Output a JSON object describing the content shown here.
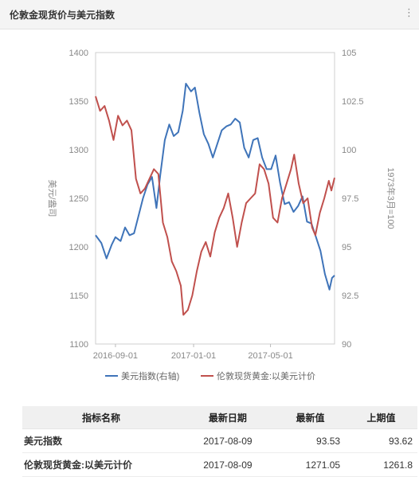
{
  "panel": {
    "title": "伦敦金现货价与美元指数",
    "corner_icon": "expand-icon"
  },
  "chart_data": {
    "type": "line",
    "x_ticks": [
      "2016-09-01",
      "2017-01-01",
      "2017-05-01"
    ],
    "x_range": [
      "2016-08-01",
      "2017-08-09"
    ],
    "y_left": {
      "label": "美元/盎司",
      "ticks": [
        1400,
        1350,
        1300,
        1250,
        1200,
        1150,
        1100
      ],
      "range": [
        1100,
        1400
      ]
    },
    "y_right": {
      "label": "1973年3月=100",
      "ticks": [
        "105",
        "102.5",
        "100",
        "97.5",
        "95",
        "92.5",
        "90"
      ],
      "range": [
        90,
        105
      ]
    },
    "grid": false,
    "legend_position": "bottom",
    "series": [
      {
        "name": "美元指数(右轴)",
        "axis": "right",
        "color": "#3f74b9",
        "points": [
          [
            "2016-08-01",
            95.6
          ],
          [
            "2016-08-10",
            95.2
          ],
          [
            "2016-08-18",
            94.4
          ],
          [
            "2016-08-26",
            95.1
          ],
          [
            "2016-09-01",
            95.5
          ],
          [
            "2016-09-09",
            95.3
          ],
          [
            "2016-09-16",
            96.0
          ],
          [
            "2016-09-23",
            95.6
          ],
          [
            "2016-09-30",
            95.7
          ],
          [
            "2016-10-07",
            96.6
          ],
          [
            "2016-10-14",
            97.5
          ],
          [
            "2016-10-21",
            98.2
          ],
          [
            "2016-10-28",
            98.6
          ],
          [
            "2016-11-04",
            97.0
          ],
          [
            "2016-11-10",
            98.7
          ],
          [
            "2016-11-17",
            100.5
          ],
          [
            "2016-11-24",
            101.3
          ],
          [
            "2016-12-01",
            100.7
          ],
          [
            "2016-12-08",
            100.9
          ],
          [
            "2016-12-15",
            102.0
          ],
          [
            "2016-12-20",
            103.4
          ],
          [
            "2016-12-28",
            103.0
          ],
          [
            "2017-01-03",
            103.2
          ],
          [
            "2017-01-10",
            101.9
          ],
          [
            "2017-01-17",
            100.8
          ],
          [
            "2017-01-24",
            100.3
          ],
          [
            "2017-01-31",
            99.6
          ],
          [
            "2017-02-07",
            100.3
          ],
          [
            "2017-02-14",
            101.0
          ],
          [
            "2017-02-21",
            101.2
          ],
          [
            "2017-02-28",
            101.3
          ],
          [
            "2017-03-07",
            101.6
          ],
          [
            "2017-03-14",
            101.4
          ],
          [
            "2017-03-21",
            100.1
          ],
          [
            "2017-03-28",
            99.6
          ],
          [
            "2017-04-04",
            100.5
          ],
          [
            "2017-04-11",
            100.6
          ],
          [
            "2017-04-18",
            99.6
          ],
          [
            "2017-04-25",
            99.0
          ],
          [
            "2017-05-02",
            99.0
          ],
          [
            "2017-05-09",
            99.7
          ],
          [
            "2017-05-16",
            98.3
          ],
          [
            "2017-05-23",
            97.2
          ],
          [
            "2017-05-30",
            97.3
          ],
          [
            "2017-06-06",
            96.8
          ],
          [
            "2017-06-13",
            97.1
          ],
          [
            "2017-06-20",
            97.6
          ],
          [
            "2017-06-27",
            96.3
          ],
          [
            "2017-07-04",
            96.2
          ],
          [
            "2017-07-11",
            95.5
          ],
          [
            "2017-07-18",
            94.8
          ],
          [
            "2017-07-25",
            93.6
          ],
          [
            "2017-08-01",
            92.8
          ],
          [
            "2017-08-05",
            93.4
          ],
          [
            "2017-08-09",
            93.53
          ]
        ]
      },
      {
        "name": "伦敦现货黄金:以美元计价",
        "axis": "left",
        "color": "#c0504d",
        "points": [
          [
            "2016-08-01",
            1355
          ],
          [
            "2016-08-08",
            1340
          ],
          [
            "2016-08-15",
            1345
          ],
          [
            "2016-08-22",
            1330
          ],
          [
            "2016-08-29",
            1310
          ],
          [
            "2016-09-05",
            1335
          ],
          [
            "2016-09-12",
            1325
          ],
          [
            "2016-09-19",
            1330
          ],
          [
            "2016-09-26",
            1320
          ],
          [
            "2016-10-03",
            1270
          ],
          [
            "2016-10-10",
            1255
          ],
          [
            "2016-10-17",
            1260
          ],
          [
            "2016-10-24",
            1270
          ],
          [
            "2016-10-31",
            1280
          ],
          [
            "2016-11-07",
            1275
          ],
          [
            "2016-11-14",
            1225
          ],
          [
            "2016-11-21",
            1210
          ],
          [
            "2016-11-28",
            1185
          ],
          [
            "2016-12-05",
            1175
          ],
          [
            "2016-12-12",
            1160
          ],
          [
            "2016-12-16",
            1130
          ],
          [
            "2016-12-23",
            1135
          ],
          [
            "2016-12-30",
            1150
          ],
          [
            "2017-01-06",
            1175
          ],
          [
            "2017-01-13",
            1195
          ],
          [
            "2017-01-20",
            1205
          ],
          [
            "2017-01-27",
            1190
          ],
          [
            "2017-02-03",
            1215
          ],
          [
            "2017-02-10",
            1230
          ],
          [
            "2017-02-17",
            1240
          ],
          [
            "2017-02-24",
            1255
          ],
          [
            "2017-03-03",
            1230
          ],
          [
            "2017-03-10",
            1200
          ],
          [
            "2017-03-17",
            1225
          ],
          [
            "2017-03-24",
            1245
          ],
          [
            "2017-03-31",
            1250
          ],
          [
            "2017-04-07",
            1255
          ],
          [
            "2017-04-14",
            1285
          ],
          [
            "2017-04-21",
            1280
          ],
          [
            "2017-04-28",
            1265
          ],
          [
            "2017-05-05",
            1230
          ],
          [
            "2017-05-12",
            1225
          ],
          [
            "2017-05-19",
            1250
          ],
          [
            "2017-05-26",
            1265
          ],
          [
            "2017-06-02",
            1280
          ],
          [
            "2017-06-07",
            1295
          ],
          [
            "2017-06-14",
            1265
          ],
          [
            "2017-06-21",
            1245
          ],
          [
            "2017-06-28",
            1250
          ],
          [
            "2017-07-05",
            1220
          ],
          [
            "2017-07-10",
            1212
          ],
          [
            "2017-07-17",
            1235
          ],
          [
            "2017-07-24",
            1250
          ],
          [
            "2017-07-31",
            1268
          ],
          [
            "2017-08-04",
            1258
          ],
          [
            "2017-08-09",
            1271.05
          ]
        ]
      }
    ]
  },
  "table": {
    "headers": [
      "指标名称",
      "最新日期",
      "最新值",
      "上期值"
    ],
    "rows": [
      [
        "美元指数",
        "2017-08-09",
        "93.53",
        "93.62"
      ],
      [
        "伦敦现货黄金:以美元计价",
        "2017-08-09",
        "1271.05",
        "1261.8"
      ]
    ]
  }
}
